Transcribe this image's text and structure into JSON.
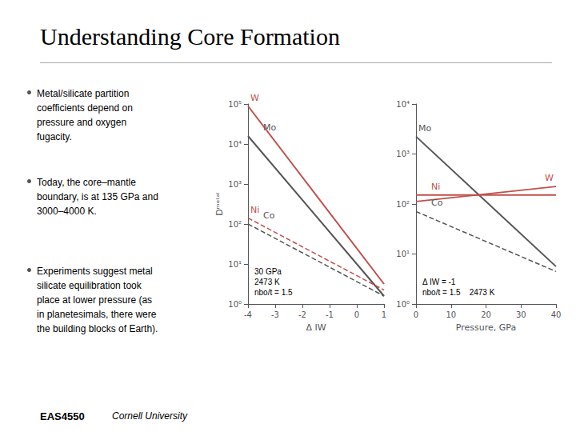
{
  "title": "Understanding Core Formation",
  "annotations": [
    "Metal/silicate partition\ncoefficients depend on\npressure and oxygen\nfugacity.",
    "Today, the core–mantle\nboundary, is at 135 GPa and\n3000–4000 K.",
    "Experiments suggest metal\nsilicate equilibration took\nplace at lower pressure (as\nin planetesimals, there were\nthe building blocks of Earth)."
  ],
  "footer": [
    "EAS4550",
    "Cornell University"
  ],
  "chart_data": [
    {
      "type": "line",
      "log": "y",
      "grid": false,
      "xlabel": "Δ IW",
      "ylabel": "Dᵐᵉᵗᵃˡ",
      "xlim": [
        -4,
        1
      ],
      "xticks": [
        -4,
        -3,
        -2,
        -1,
        0,
        1
      ],
      "ylim": [
        1,
        100000
      ],
      "yticks": [
        {
          "value": 1,
          "label": "10⁰"
        },
        {
          "value": 10,
          "label": "10¹"
        },
        {
          "value": 100,
          "label": "10²"
        },
        {
          "value": 1000,
          "label": "10³"
        },
        {
          "value": 10000,
          "label": "10⁴"
        },
        {
          "value": 100000,
          "label": "10⁵"
        }
      ],
      "annotations": [
        "30 GPa\n2473 K\nnbo/t = 1.5"
      ],
      "series": [
        {
          "name": "W",
          "color": "#C0504D",
          "line_style": "solid",
          "x": [
            -4,
            1
          ],
          "values": [
            89125.0938133746,
            3.1622776601683795
          ]
        },
        {
          "name": "Mo",
          "color": "#555555",
          "line_style": "solid",
          "x": [
            -4,
            1
          ],
          "values": [
            15848.931924611135,
            1.5848931924611136
          ]
        },
        {
          "name": "Ni",
          "color": "#C0504D",
          "line_style": "dashed",
          "x": [
            -4,
            1
          ],
          "values": [
            141.25375446227545,
            2.2387211385683394
          ]
        },
        {
          "name": "Co",
          "color": "#555555",
          "line_style": "dashed",
          "x": [
            -4,
            1
          ],
          "values": [
            100,
            1.5848931924611136
          ]
        }
      ]
    },
    {
      "type": "line",
      "log": "y",
      "grid": false,
      "xlabel": "Pressure, GPa",
      "xlim": [
        0,
        40
      ],
      "xticks": [
        0,
        10,
        20,
        30,
        40
      ],
      "ylim": [
        1,
        10000
      ],
      "yticks": [
        {
          "value": 1,
          "label": "10⁰"
        },
        {
          "value": 10,
          "label": "10¹"
        },
        {
          "value": 100,
          "label": "10²"
        },
        {
          "value": 1000,
          "label": "10³"
        },
        {
          "value": 10000,
          "label": "10⁴"
        }
      ],
      "annotations": [
        "Δ IW = -1",
        "nbo/t = 1.5    2473 K"
      ],
      "series": [
        {
          "name": "Mo",
          "color": "#555555",
          "line_style": "solid",
          "x": [
            0,
            40
          ],
          "values": [
            2238.7211385683395,
            5.623413251903491
          ]
        },
        {
          "name": "Ni",
          "color": "#C0504D",
          "line_style": "solid",
          "x": [
            0,
            40
          ],
          "values": [
            151.35612484362082,
            151.35612484362082
          ]
        },
        {
          "name": "W",
          "color": "#C0504D",
          "line_style": "solid",
          "x": [
            0,
            40
          ],
          "values": [
            112.20184543019633,
            223.87211385683395
          ]
        },
        {
          "name": "Co",
          "color": "#555555",
          "line_style": "dashed",
          "x": [
            0,
            40
          ],
          "values": [
            70.7945784384138,
            4.466835921509632
          ]
        }
      ]
    }
  ]
}
